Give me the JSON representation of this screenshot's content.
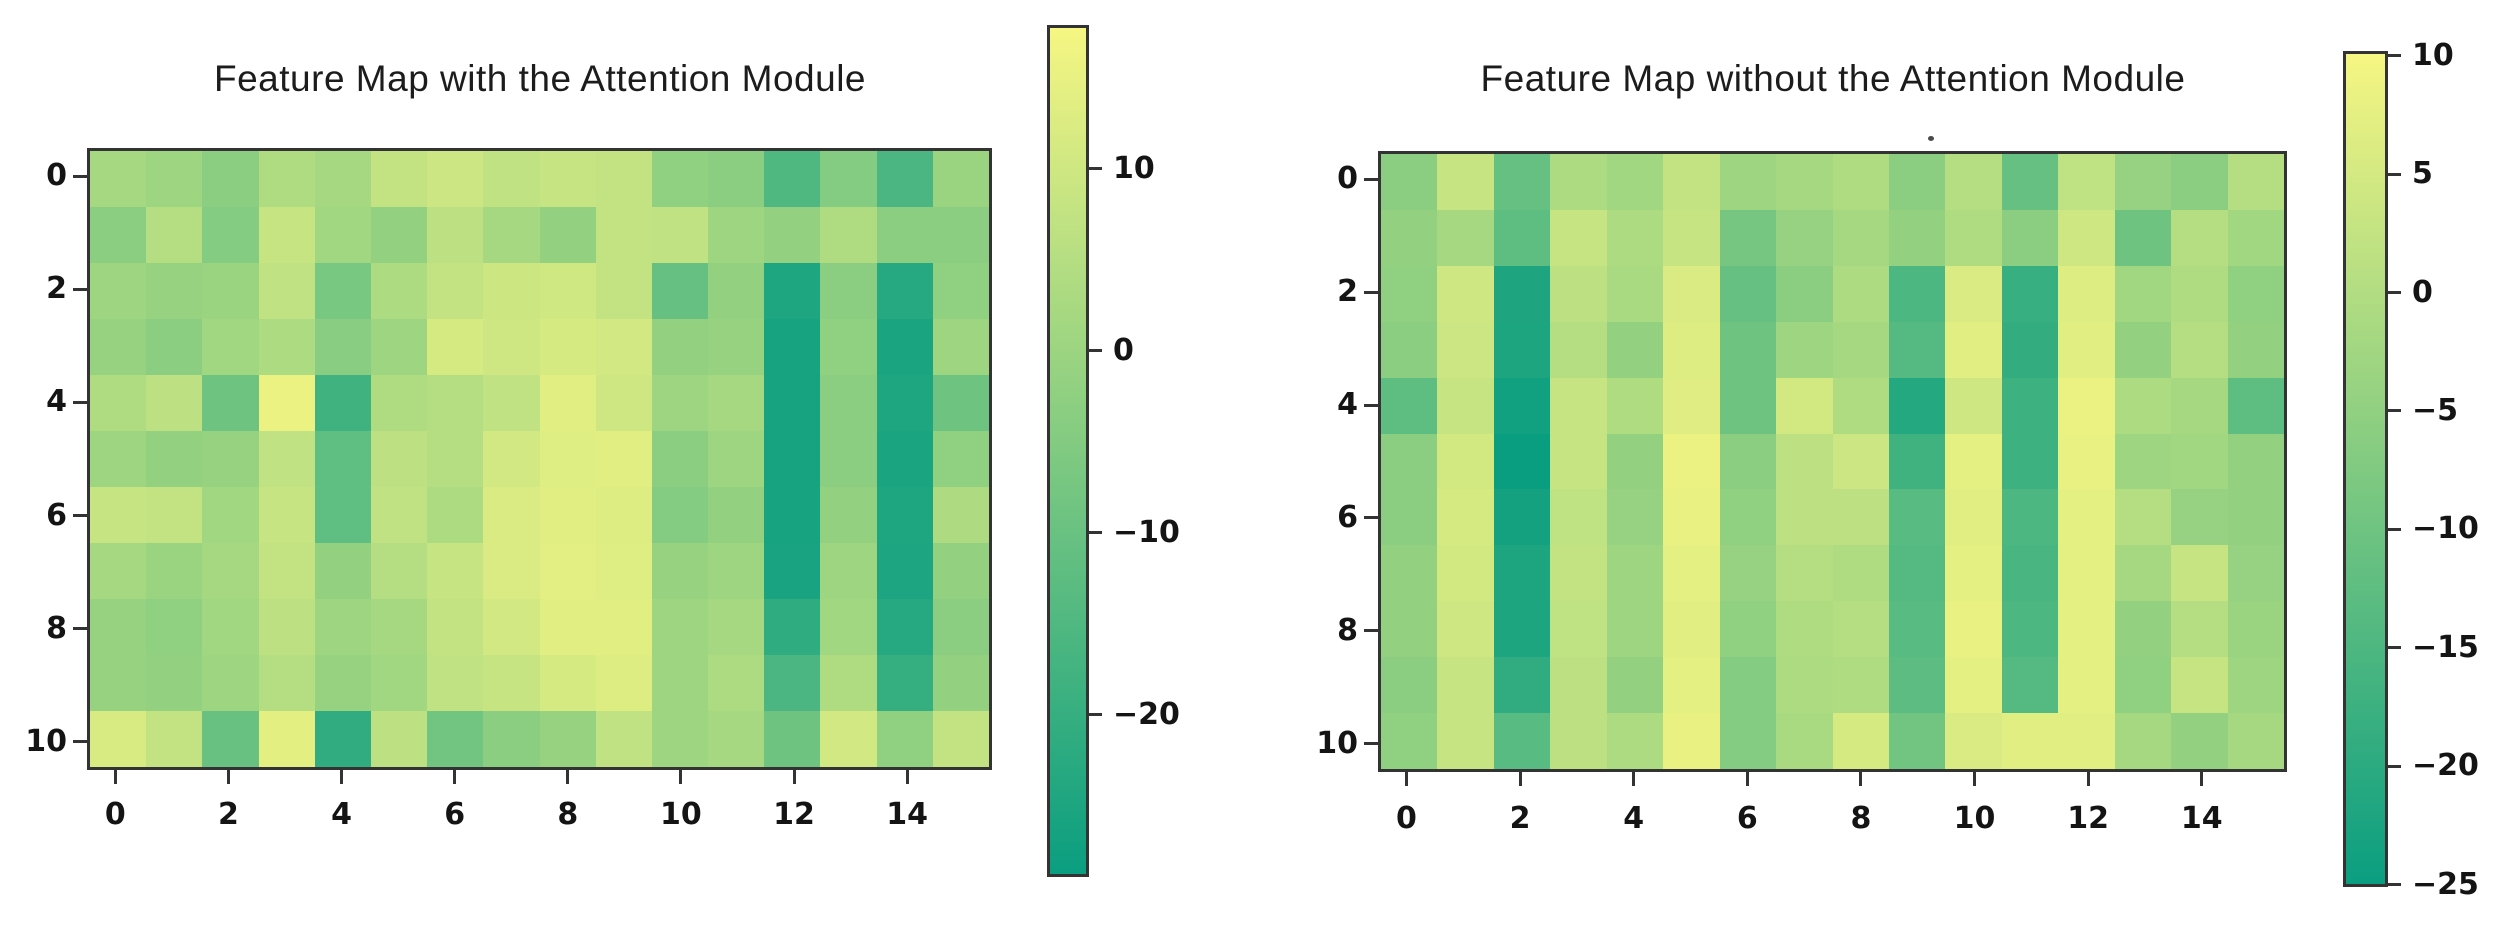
{
  "chart_data": [
    {
      "type": "heatmap",
      "title": "Feature Map with the Attention Module",
      "colormap": "summer",
      "n_rows": 11,
      "n_cols": 16,
      "x_tick_values": [
        0,
        2,
        4,
        6,
        8,
        10,
        12,
        14
      ],
      "y_tick_values": [
        0,
        2,
        4,
        6,
        8,
        10
      ],
      "colorbar_tick_values": [
        10,
        0,
        -10,
        -20
      ],
      "vmin": -28.9,
      "vmax": 17.9,
      "grid": false,
      "values": [
        [
          1.9,
          0.5,
          -3.2,
          4.1,
          1.9,
          7.8,
          9.3,
          7.1,
          8.5,
          7.8,
          -2.5,
          -3.2,
          -15.3,
          -4.7,
          -16.1,
          -0.3
        ],
        [
          -3.2,
          4.9,
          -4.7,
          8.5,
          1.2,
          -1.7,
          6.3,
          1.9,
          -1.7,
          7.8,
          7.1,
          0.5,
          -1.7,
          4.1,
          -3.2,
          -3.2
        ],
        [
          0.5,
          -1.0,
          -0.3,
          7.1,
          -6.8,
          3.4,
          7.8,
          9.6,
          10.4,
          7.8,
          -10.9,
          -1.7,
          -24.9,
          -3.2,
          -23.4,
          -2.5
        ],
        [
          -1.0,
          -3.2,
          1.2,
          3.4,
          -4.0,
          0.5,
          11.5,
          10.0,
          11.5,
          10.7,
          -1.7,
          -1.0,
          -26.3,
          -2.5,
          -25.6,
          0.5
        ],
        [
          4.1,
          6.3,
          -9.1,
          15.9,
          -18.3,
          4.1,
          4.9,
          7.1,
          13.7,
          10.0,
          0.5,
          1.9,
          -26.3,
          -3.2,
          -24.9,
          -9.1
        ],
        [
          0.5,
          -1.7,
          -1.0,
          7.1,
          -12.0,
          6.3,
          4.9,
          10.7,
          13.4,
          13.7,
          -3.2,
          0.5,
          -26.3,
          -3.2,
          -25.6,
          -2.5
        ],
        [
          8.5,
          7.8,
          1.2,
          8.5,
          -12.0,
          7.1,
          3.4,
          12.2,
          13.7,
          13.0,
          -4.7,
          -1.7,
          -26.3,
          -1.7,
          -24.9,
          3.7
        ],
        [
          1.9,
          -0.3,
          1.9,
          7.8,
          -1.7,
          4.9,
          8.5,
          12.2,
          14.1,
          13.4,
          -1.0,
          0.5,
          -26.0,
          0.5,
          -25.3,
          -1.7
        ],
        [
          -1.0,
          -2.5,
          1.2,
          6.3,
          0.5,
          1.9,
          7.8,
          10.7,
          13.7,
          13.7,
          0.5,
          1.9,
          -21.6,
          1.2,
          -23.4,
          -3.2
        ],
        [
          -1.0,
          -1.7,
          0.5,
          4.9,
          -1.0,
          1.2,
          7.1,
          8.5,
          11.5,
          13.0,
          0.5,
          3.4,
          -16.1,
          4.1,
          -20.1,
          -1.7
        ],
        [
          11.9,
          7.8,
          -10.2,
          14.4,
          -21.2,
          6.3,
          -8.3,
          -3.2,
          -1.0,
          7.1,
          0.5,
          1.9,
          -9.1,
          10.7,
          -2.5,
          7.8
        ]
      ]
    },
    {
      "type": "heatmap",
      "title": "Feature Map without the Attention Module",
      "colormap": "summer",
      "n_rows": 11,
      "n_cols": 16,
      "x_tick_values": [
        0,
        2,
        4,
        6,
        8,
        10,
        12,
        14
      ],
      "y_tick_values": [
        0,
        2,
        4,
        6,
        8,
        10
      ],
      "colorbar_tick_values": [
        10,
        5,
        0,
        -5,
        -10,
        -15,
        -20,
        -25
      ],
      "vmin": -25.1,
      "vmax": 10.2,
      "grid": false,
      "values": [
        [
          -5.7,
          3.1,
          -11.5,
          -0.7,
          -2.4,
          2.6,
          -2.9,
          -1.8,
          -0.2,
          -5.7,
          0.4,
          -11.5,
          2.0,
          -4.1,
          -5.7,
          0.4
        ],
        [
          -4.6,
          -1.8,
          -12.6,
          3.1,
          -0.7,
          3.1,
          -9.0,
          -4.1,
          -1.8,
          -4.6,
          -0.2,
          -5.7,
          4.2,
          -10.2,
          0.4,
          -2.4
        ],
        [
          -5.2,
          4.2,
          -22.1,
          1.5,
          -1.3,
          5.9,
          -11.5,
          -5.7,
          -0.7,
          -15.1,
          5.9,
          -18.4,
          6.5,
          -2.4,
          -0.2,
          -5.2
        ],
        [
          -5.7,
          3.7,
          -22.3,
          0.4,
          -4.6,
          6.5,
          -10.2,
          -2.9,
          -1.8,
          -14.0,
          7.0,
          -19.0,
          7.0,
          -4.6,
          0.4,
          -4.6
        ],
        [
          -12.6,
          3.1,
          -24.0,
          3.1,
          -0.2,
          6.7,
          -10.2,
          4.8,
          -0.2,
          -21.2,
          4.2,
          -17.3,
          8.7,
          -0.7,
          -1.8,
          -12.6
        ],
        [
          -5.7,
          4.8,
          -25.1,
          3.1,
          -4.6,
          8.7,
          -5.7,
          1.5,
          3.7,
          -17.1,
          7.6,
          -17.3,
          8.1,
          -2.9,
          -2.4,
          -4.6
        ],
        [
          -5.7,
          5.4,
          -23.7,
          2.0,
          -4.1,
          8.1,
          -5.2,
          1.5,
          1.5,
          -13.5,
          7.0,
          -15.1,
          7.6,
          0.4,
          -4.1,
          -4.6
        ],
        [
          -4.6,
          4.8,
          -22.3,
          2.6,
          -2.9,
          7.6,
          -4.1,
          0.4,
          -0.2,
          -14.0,
          7.6,
          -15.7,
          7.6,
          -1.8,
          3.1,
          -4.1
        ],
        [
          -4.6,
          4.2,
          -22.3,
          2.0,
          -2.9,
          7.0,
          -5.2,
          -0.2,
          0.4,
          -13.5,
          8.1,
          -15.1,
          7.6,
          -4.6,
          0.4,
          -3.5
        ],
        [
          -5.7,
          3.1,
          -19.3,
          1.5,
          -4.6,
          7.6,
          -6.8,
          -0.7,
          -0.2,
          -12.9,
          7.6,
          -14.0,
          7.6,
          -5.2,
          3.1,
          -2.9
        ],
        [
          -5.2,
          3.1,
          -13.5,
          1.5,
          -0.7,
          8.1,
          -6.8,
          -1.3,
          5.4,
          -9.6,
          5.9,
          7.0,
          7.0,
          -1.8,
          -4.6,
          -1.8
        ]
      ]
    }
  ],
  "colors": {
    "colormap_low": "#0a9e80",
    "colormap_high": "#f6f682",
    "spine": "#333333",
    "background": "#ffffff",
    "text": "#1c1c1c"
  }
}
